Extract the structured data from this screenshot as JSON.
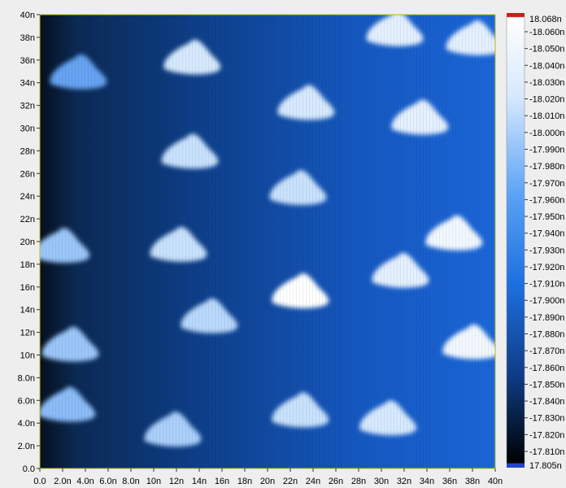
{
  "chart_data": {
    "type": "heatmap",
    "x_ticks": [
      "0.0",
      "2.0n",
      "4.0n",
      "6.0n",
      "8.0n",
      "10n",
      "12n",
      "14n",
      "16n",
      "18n",
      "20n",
      "22n",
      "24n",
      "26n",
      "28n",
      "30n",
      "32n",
      "34n",
      "36n",
      "38n",
      "40n"
    ],
    "y_ticks": [
      "0.0",
      "2.0n",
      "4.0n",
      "6.0n",
      "8.0n",
      "10n",
      "12n",
      "14n",
      "16n",
      "18n",
      "20n",
      "22n",
      "24n",
      "26n",
      "28n",
      "30n",
      "32n",
      "34n",
      "36n",
      "38n",
      "40n"
    ],
    "xlim": [
      0,
      40
    ],
    "ylim": [
      0,
      40
    ],
    "colorbar": {
      "max_label": "18.068n",
      "min_label": "17.805n",
      "labels": [
        "-18.060n",
        "-18.050n",
        "-18.040n",
        "-18.030n",
        "-18.020n",
        "-18.010n",
        "-18.000n",
        "-17.990n",
        "-17.980n",
        "-17.970n",
        "-17.960n",
        "-17.950n",
        "-17.940n",
        "-17.930n",
        "-17.920n",
        "-17.910n",
        "-17.900n",
        "-17.890n",
        "-17.880n",
        "-17.870n",
        "-17.860n",
        "-17.850n",
        "-17.840n",
        "-17.830n",
        "-17.820n",
        "-17.810n"
      ],
      "max_marker_color": "#d81818",
      "min_marker_color": "#2244cc",
      "colors": [
        "#000000",
        "#0a2a55",
        "#1a63c8",
        "#3a8ef0",
        "#9cc6f8",
        "#ffffff"
      ]
    },
    "islands": [
      {
        "x": 3.5,
        "y": 35.0,
        "intensity": 0.45
      },
      {
        "x": 13.5,
        "y": 36.3,
        "intensity": 0.85
      },
      {
        "x": 23.5,
        "y": 32.3,
        "intensity": 0.85
      },
      {
        "x": 33.5,
        "y": 31.0,
        "intensity": 0.9
      },
      {
        "x": 31.3,
        "y": 38.8,
        "intensity": 0.9
      },
      {
        "x": 38.3,
        "y": 38.0,
        "intensity": 0.9
      },
      {
        "x": 13.3,
        "y": 28.0,
        "intensity": 0.8
      },
      {
        "x": 22.8,
        "y": 24.8,
        "intensity": 0.8
      },
      {
        "x": 12.3,
        "y": 19.8,
        "intensity": 0.8
      },
      {
        "x": 36.5,
        "y": 20.8,
        "intensity": 0.95
      },
      {
        "x": 31.8,
        "y": 17.5,
        "intensity": 0.9
      },
      {
        "x": 23.0,
        "y": 15.7,
        "intensity": 1.0
      },
      {
        "x": 2.0,
        "y": 19.7,
        "intensity": 0.65
      },
      {
        "x": 15.0,
        "y": 13.5,
        "intensity": 0.75
      },
      {
        "x": 2.8,
        "y": 11.0,
        "intensity": 0.65
      },
      {
        "x": 38.0,
        "y": 11.2,
        "intensity": 0.95
      },
      {
        "x": 2.5,
        "y": 5.7,
        "intensity": 0.6
      },
      {
        "x": 23.0,
        "y": 5.2,
        "intensity": 0.8
      },
      {
        "x": 30.7,
        "y": 4.5,
        "intensity": 0.85
      },
      {
        "x": 11.8,
        "y": 3.5,
        "intensity": 0.7
      }
    ]
  }
}
